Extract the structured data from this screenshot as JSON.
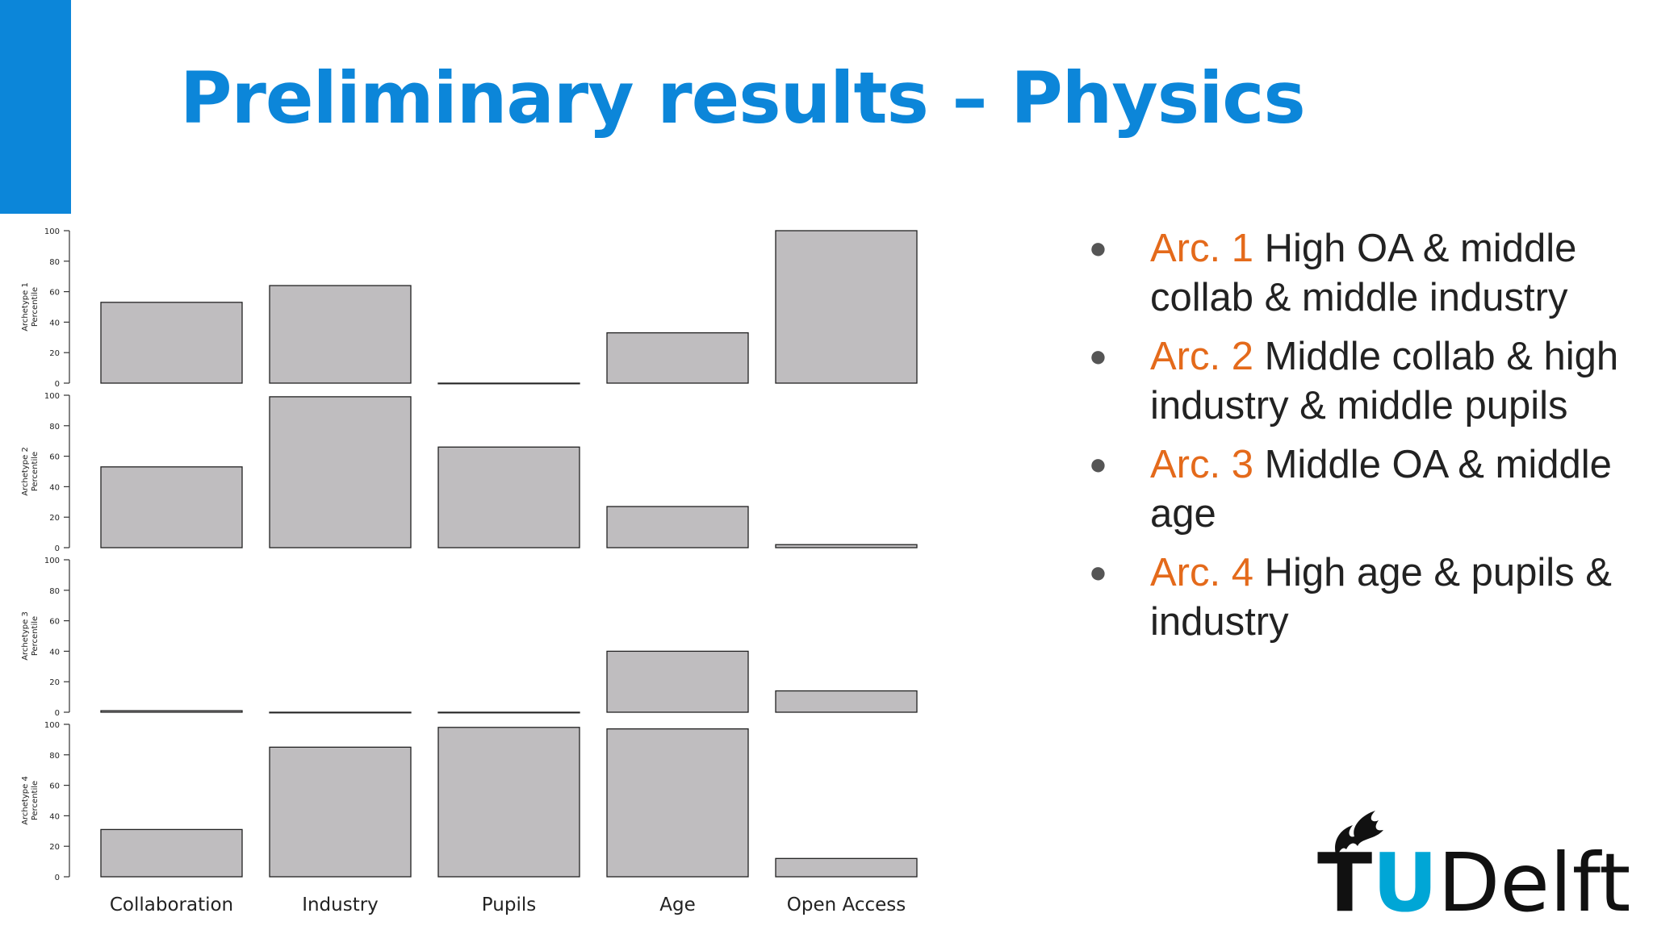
{
  "slide": {
    "title": "Preliminary results – Physics",
    "bullets": [
      {
        "arc": "Arc. 1",
        "text": " High OA & middle collab & middle industry"
      },
      {
        "arc": "Arc. 2",
        "text": " Middle collab & high industry & middle pupils"
      },
      {
        "arc": "Arc. 3",
        "text": " Middle OA & middle age"
      },
      {
        "arc": "Arc. 4",
        "text": " High age & pupils & industry"
      }
    ],
    "logo": {
      "t": "T",
      "u": "U",
      "rest": "Delft"
    }
  },
  "colors": {
    "accent": "#0c86d9",
    "arc_label": "#e46a1b",
    "bar_fill": "#bfbdbf",
    "logo_u": "#00a6d6"
  },
  "chart_data": {
    "type": "bar",
    "categories": [
      "Collaboration",
      "Industry",
      "Pupils",
      "Age",
      "Open Access"
    ],
    "ylim": [
      0,
      100
    ],
    "yticks": [
      0,
      20,
      40,
      60,
      80,
      100
    ],
    "panels": [
      {
        "ylabel": [
          "Archetype 1",
          "Percentile"
        ],
        "values": [
          53,
          64,
          0,
          33,
          100
        ]
      },
      {
        "ylabel": [
          "Archetype 2",
          "Percentile"
        ],
        "values": [
          53,
          99,
          66,
          27,
          2
        ]
      },
      {
        "ylabel": [
          "Archetype 3",
          "Percentile"
        ],
        "values": [
          1,
          0,
          0,
          40,
          14
        ]
      },
      {
        "ylabel": [
          "Archetype 4",
          "Percentile"
        ],
        "values": [
          31,
          85,
          98,
          97,
          12
        ]
      }
    ]
  }
}
